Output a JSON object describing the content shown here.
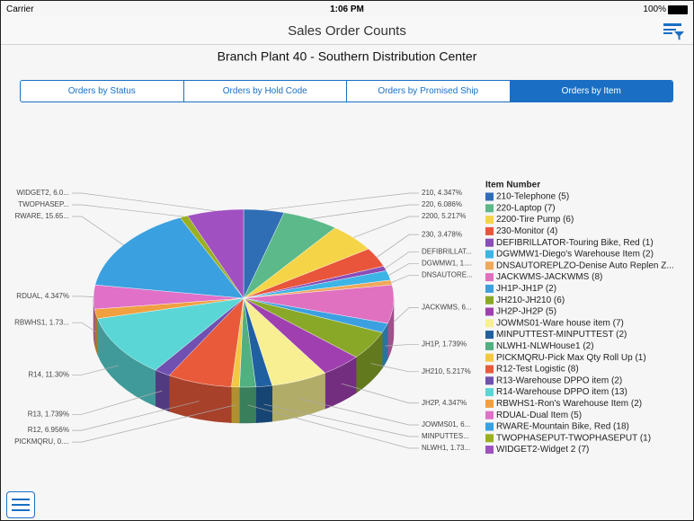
{
  "status": {
    "carrier": "Carrier",
    "time": "1:06 PM",
    "battery": "100%"
  },
  "header": {
    "title": "Sales Order Counts"
  },
  "tabs": [
    {
      "label": "Orders by Status",
      "selected": false
    },
    {
      "label": "Orders by Hold Code",
      "selected": false
    },
    {
      "label": "Orders by Promised Ship",
      "selected": false
    },
    {
      "label": "Orders by Item",
      "selected": true
    }
  ],
  "chart_data": {
    "type": "pie3d",
    "title": "Branch Plant 40 - Southern Distribution Center",
    "legend_title": "Item Number",
    "categories": [
      "210-Telephone (5)",
      "220-Laptop (7)",
      "2200-Tire Pump (6)",
      "230-Monitor (4)",
      "DEFIBRILLATOR-Touring Bike, Red (1)",
      "DGWMW1-Diego's Warehouse Item (2)",
      "DNSAUTOREPLZO-Denise Auto Replen Z...",
      "JACKWMS-JACKWMS (8)",
      "JH1P-JH1P (2)",
      "JH210-JH210 (6)",
      "JH2P-JH2P (5)",
      "JOWMS01-Ware house item (7)",
      "MINPUTTEST-MINPUTTEST (2)",
      "NLWH1-NLWHouse1 (2)",
      "PICKMQRU-Pick Max Qty Roll Up (1)",
      "R12-Test Logistic (8)",
      "R13-Warehouse DPPO item (2)",
      "R14-Warehouse DPPO item (13)",
      "RBWHS1-Ron's Warehouse Item (2)",
      "RDUAL-Dual Item (5)",
      "RWARE-Mountain Bike, Red (18)",
      "TWOPHASEPUT-TWOPHASEPUT (1)",
      "WIDGET2-Widget 2 (7)"
    ],
    "values": [
      4.347,
      6.086,
      5.217,
      3.478,
      0.869,
      1.739,
      0.869,
      6.956,
      1.739,
      5.217,
      4.347,
      6.086,
      1.739,
      1.739,
      0.869,
      6.956,
      1.739,
      11.3,
      1.739,
      4.347,
      15.65,
      0.869,
      6.086
    ],
    "value_labels": [
      "210, 4.347%",
      "220, 6.086%",
      "2200, 5.217%",
      "230, 3.478%",
      "DEFIBRILLAT...",
      "DGWMW1, 1....",
      "DNSAUTORE...",
      "JACKWMS, 6...",
      "JH1P, 1.739%",
      "JH210, 5.217%",
      "JH2P, 4.347%",
      "JOWMS01, 6...",
      "MINPUTTES...",
      "NLWH1, 1.73...",
      "PICKMQRU, 0....",
      "R12, 6.956%",
      "R13, 1.739%",
      "R14, 11.30%",
      "RBWHS1, 1.73...",
      "RDUAL, 4.347%",
      "RWARE, 15.65...",
      "TWOPHASEP...",
      "WIDGET2, 6.0..."
    ],
    "colors": [
      "#2f6eb5",
      "#5cb98a",
      "#f5d547",
      "#e8553a",
      "#8b4db8",
      "#3cb4e6",
      "#f0a85a",
      "#e070c0",
      "#3ca0e0",
      "#8aa828",
      "#a040b0",
      "#f7ef92",
      "#2060a0",
      "#50b080",
      "#f5c842",
      "#e85a3a",
      "#7050b0",
      "#5ad6d6",
      "#f0a040",
      "#e070c8",
      "#3aa0e0",
      "#9ab020",
      "#a050c0"
    ]
  }
}
